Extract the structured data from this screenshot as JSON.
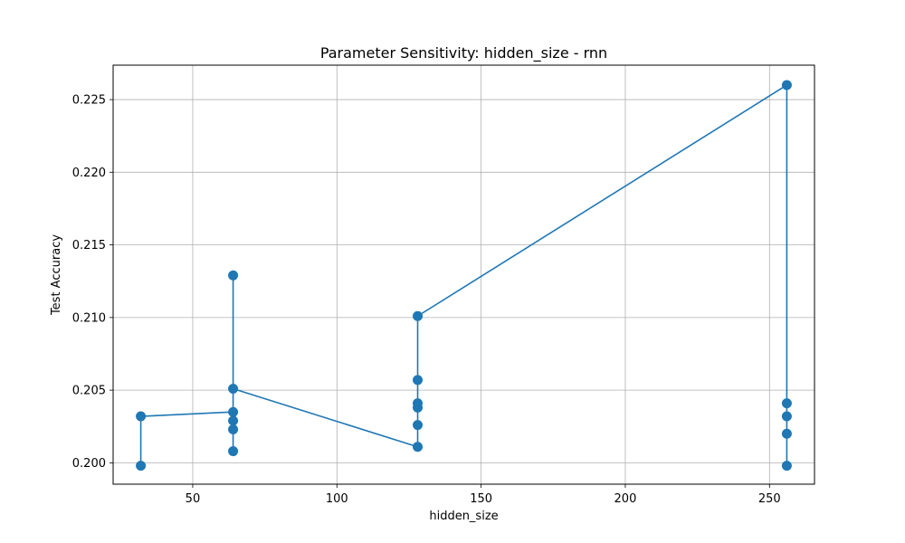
{
  "chart_data": {
    "type": "line",
    "title": "Parameter Sensitivity: hidden_size - rnn",
    "xlabel": "hidden_size",
    "ylabel": "Test Accuracy",
    "xlim": [
      22.4,
      265.6
    ],
    "ylim": [
      0.19853,
      0.22737
    ],
    "xticks": [
      50,
      100,
      150,
      200,
      250
    ],
    "xtick_labels": [
      "50",
      "100",
      "150",
      "200",
      "250"
    ],
    "yticks": [
      0.2,
      0.205,
      0.21,
      0.215,
      0.22,
      0.225
    ],
    "ytick_labels": [
      "0.200",
      "0.205",
      "0.210",
      "0.215",
      "0.220",
      "0.225"
    ],
    "grid": true,
    "series": [
      {
        "name": "rnn",
        "color": "#1f77b4",
        "marker": "circle",
        "x": [
          32,
          32,
          64,
          64,
          64,
          64,
          64,
          64,
          128,
          128,
          128,
          128,
          128,
          128,
          256,
          256,
          256,
          256,
          256
        ],
        "y": [
          0.1998,
          0.2032,
          0.2035,
          0.2029,
          0.2023,
          0.2008,
          0.2129,
          0.2051,
          0.2011,
          0.2026,
          0.2038,
          0.2041,
          0.2057,
          0.2101,
          0.226,
          0.2041,
          0.2032,
          0.202,
          0.1998
        ]
      }
    ]
  }
}
